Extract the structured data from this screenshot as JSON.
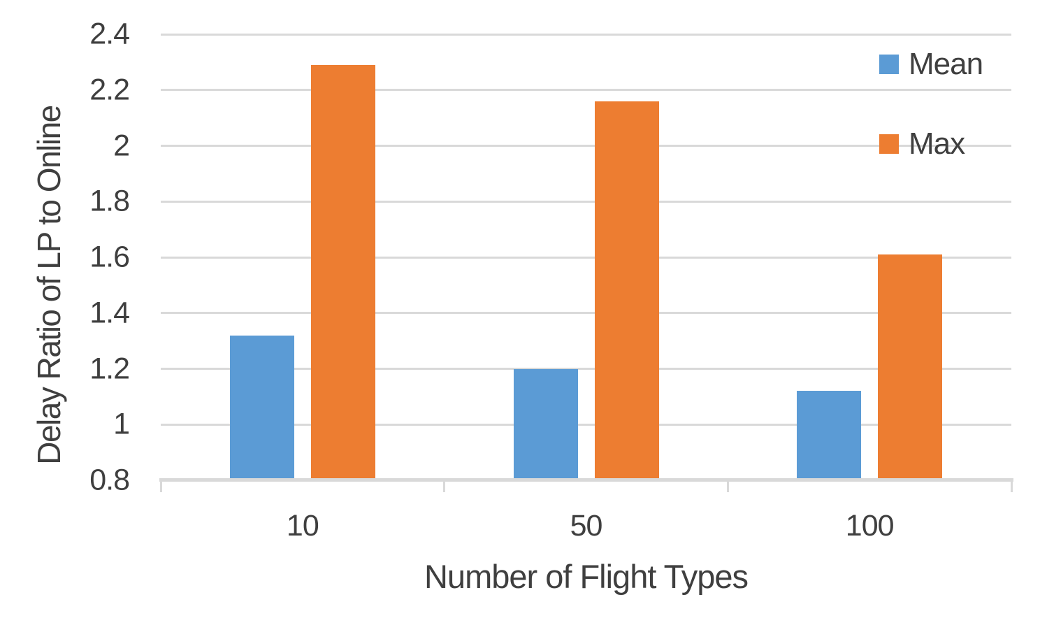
{
  "chart_data": {
    "type": "bar",
    "categories": [
      "10",
      "50",
      "100"
    ],
    "series": [
      {
        "name": "Mean",
        "color": "#5B9BD5",
        "values": [
          1.32,
          1.2,
          1.12
        ]
      },
      {
        "name": "Max",
        "color": "#ED7D31",
        "values": [
          2.29,
          2.16,
          1.61
        ]
      }
    ],
    "xlabel": "Number of Flight Types",
    "ylabel": "Delay Ratio of LP to Online",
    "ylim": [
      0.8,
      2.4
    ],
    "ytick_labels": [
      "0.8",
      "1",
      "1.2",
      "1.4",
      "1.6",
      "1.8",
      "2",
      "2.2",
      "2.4"
    ],
    "grid": true,
    "legend_position": "top-right",
    "colors": {
      "gridline": "#D9D9D9",
      "axis": "#D9D9D9",
      "text": "#3F3F3F",
      "background": "#FFFFFF"
    }
  }
}
